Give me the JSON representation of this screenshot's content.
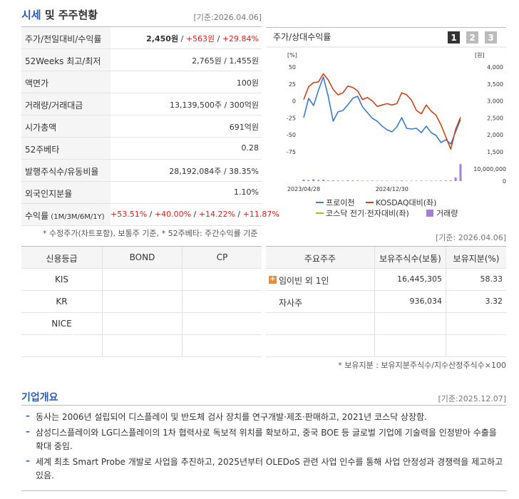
{
  "header": {
    "title_highlight": "시세",
    "title_rest": " 및 주주현황",
    "date": "[기준:2026.04.06]"
  },
  "market_table": {
    "rows": [
      {
        "label": "주가/전일대비/수익률",
        "parts": [
          {
            "text": "2,450원",
            "bold": true
          },
          {
            "text": " / "
          },
          {
            "text": "+563원",
            "color": "#e0201f"
          },
          {
            "text": " / "
          },
          {
            "text": "+29.84%",
            "color": "#e0201f"
          }
        ]
      },
      {
        "label": "52Weeks 최고/최저",
        "value": "2,765원 / 1,455원"
      },
      {
        "label": "액면가",
        "value": "100원"
      },
      {
        "label": "거래량/거래대금",
        "value": "13,139,500주 / 300억원"
      },
      {
        "label": "시가총액",
        "value": "691억원"
      },
      {
        "label": "52주베타",
        "value": "0.28"
      },
      {
        "label": "발행주식수/유동비율",
        "value": "28,192,084주 / 38.35%"
      },
      {
        "label": "외국인지분율",
        "value": "1.10%"
      },
      {
        "label": "수익률",
        "label_sub": " (1M/3M/6M/1Y)",
        "parts": [
          {
            "text": "+53.51%",
            "color": "#e0201f"
          },
          {
            "text": " / "
          },
          {
            "text": "+40.00%",
            "color": "#e0201f"
          },
          {
            "text": " / "
          },
          {
            "text": "+14.22%",
            "color": "#e0201f"
          },
          {
            "text": " / "
          },
          {
            "text": "+11.87%",
            "color": "#e0201f"
          }
        ]
      }
    ]
  },
  "market_note": "* 수정주가(차트포함), 보통주 기준, * 52주베타: 주간수익률 기준",
  "chart_data": {
    "type": "line",
    "title": "주가/상대수익률",
    "buttons": [
      "1",
      "2",
      "3"
    ],
    "ylabel": "[%]",
    "y2label": "[원]",
    "categories": [
      "2023/04/28",
      null,
      null,
      null,
      null,
      null,
      null,
      null,
      null,
      null,
      null,
      null,
      null,
      null,
      null,
      null,
      null,
      null,
      "2024/12/30",
      null,
      null,
      null,
      null,
      null,
      null,
      null,
      null,
      null,
      null,
      null,
      null,
      null,
      null
    ],
    "ylim": [
      -75,
      50
    ],
    "yticks": [
      50,
      25,
      0,
      -25,
      -50,
      -75
    ],
    "y2lim": [
      1500,
      4000
    ],
    "y2ticks": [
      {
        "value": 4000,
        "label": "4,000"
      },
      {
        "value": 3500,
        "label": "3,500"
      },
      {
        "value": 3000,
        "label": "3,000"
      },
      {
        "value": 2500,
        "label": "2,500"
      },
      {
        "value": 2000,
        "label": "2,000"
      },
      {
        "value": 1500,
        "label": "1,500"
      }
    ],
    "y3lim": [
      0,
      15000000
    ],
    "y3ticks": [
      {
        "value": 10000000,
        "label": "10,000,000"
      },
      0
    ],
    "grid": false,
    "series": [
      {
        "name": "프로이천",
        "color": "#3d7cc9",
        "axis": "y2",
        "values": [
          2508,
          3076,
          2866,
          3307,
          3706,
          3139,
          2403,
          2676,
          2718,
          2887,
          3076,
          3139,
          2824,
          2655,
          2487,
          2403,
          2256,
          2151,
          2088,
          2235,
          2508,
          2193,
          2172,
          2193,
          2067,
          2256,
          2067,
          1983,
          1773,
          1857,
          1731,
          2088,
          2450
        ]
      },
      {
        "name": "KOSDAQ대비(좌)",
        "color": "#c8451b",
        "values": [
          2,
          21,
          27,
          28,
          40,
          31,
          17,
          9,
          12,
          22,
          20,
          15,
          2,
          5,
          0,
          -8,
          -6,
          -4,
          -6,
          -4,
          12,
          9,
          1,
          -14,
          -19,
          -6,
          -15,
          -21,
          -35,
          -53,
          -71,
          -42,
          -24
        ]
      },
      {
        "name": "코스닥 전기·전자대비(좌)",
        "color": "#9ac31c",
        "values": [
          null,
          null,
          null,
          null,
          null,
          null,
          null,
          null,
          null,
          null,
          null,
          null,
          null,
          null,
          null,
          null,
          null,
          null,
          null,
          null,
          null,
          null,
          null,
          null,
          null,
          null,
          null,
          null,
          null,
          null,
          null,
          null,
          null
        ]
      },
      {
        "name": "거래량",
        "color": "#a47fd6",
        "type": "bar",
        "axis": "y3",
        "values": [
          1200000,
          800000,
          1500000,
          900000,
          1100000,
          600000,
          700000,
          500000,
          400000,
          600000,
          500000,
          400000,
          300000,
          300000,
          400000,
          300000,
          300000,
          300000,
          200000,
          300000,
          500000,
          300000,
          300000,
          300000,
          400000,
          300000,
          300000,
          300000,
          400000,
          500000,
          600000,
          3000000,
          14000000
        ]
      }
    ]
  },
  "holder_date": "[기준: 2026.04.06]",
  "credit_table": {
    "header": [
      "신용등급",
      "BOND",
      "CP"
    ],
    "rows": [
      [
        "KIS",
        null,
        null
      ],
      [
        "KR",
        null,
        null
      ],
      [
        "NICE",
        null,
        null
      ],
      [
        null,
        null,
        null
      ]
    ]
  },
  "holder_table": {
    "header": [
      "주요주주",
      "보유주식수(보통)",
      "보유지분(%)"
    ],
    "rows": [
      [
        "임이빈 외 1인",
        "16,445,305",
        "58.33"
      ],
      [
        "자사주",
        "936,034",
        "3.32"
      ],
      [
        null,
        null,
        null
      ],
      [
        null,
        null,
        null
      ]
    ]
  },
  "holder_note": "* 보유지분 : 보유지분주식수/지수산정주식수×100",
  "overview": {
    "title": "기업개요",
    "date": "[기준:2025.12.07]",
    "items": [
      "동사는 2006년 설립되어 디스플레이 및 반도체 검사 장치를 연구개발·제조·판매하고, 2021년 코스닥 상장함.",
      "삼성디스플레이와 LG디스플레이의 1차 협력사로 독보적 위치를 확보하고, 중국 BOE 등 글로벌 기업에 기술력을 인정받아 수출을 확대 중임.",
      "세계 최초 Smart Probe 개발로 사업을 추진하고, 2025년부터 OLEDoS 관련 사업 인수를 통해 사업 안정성과 경쟁력을 제고하고 있음."
    ]
  }
}
